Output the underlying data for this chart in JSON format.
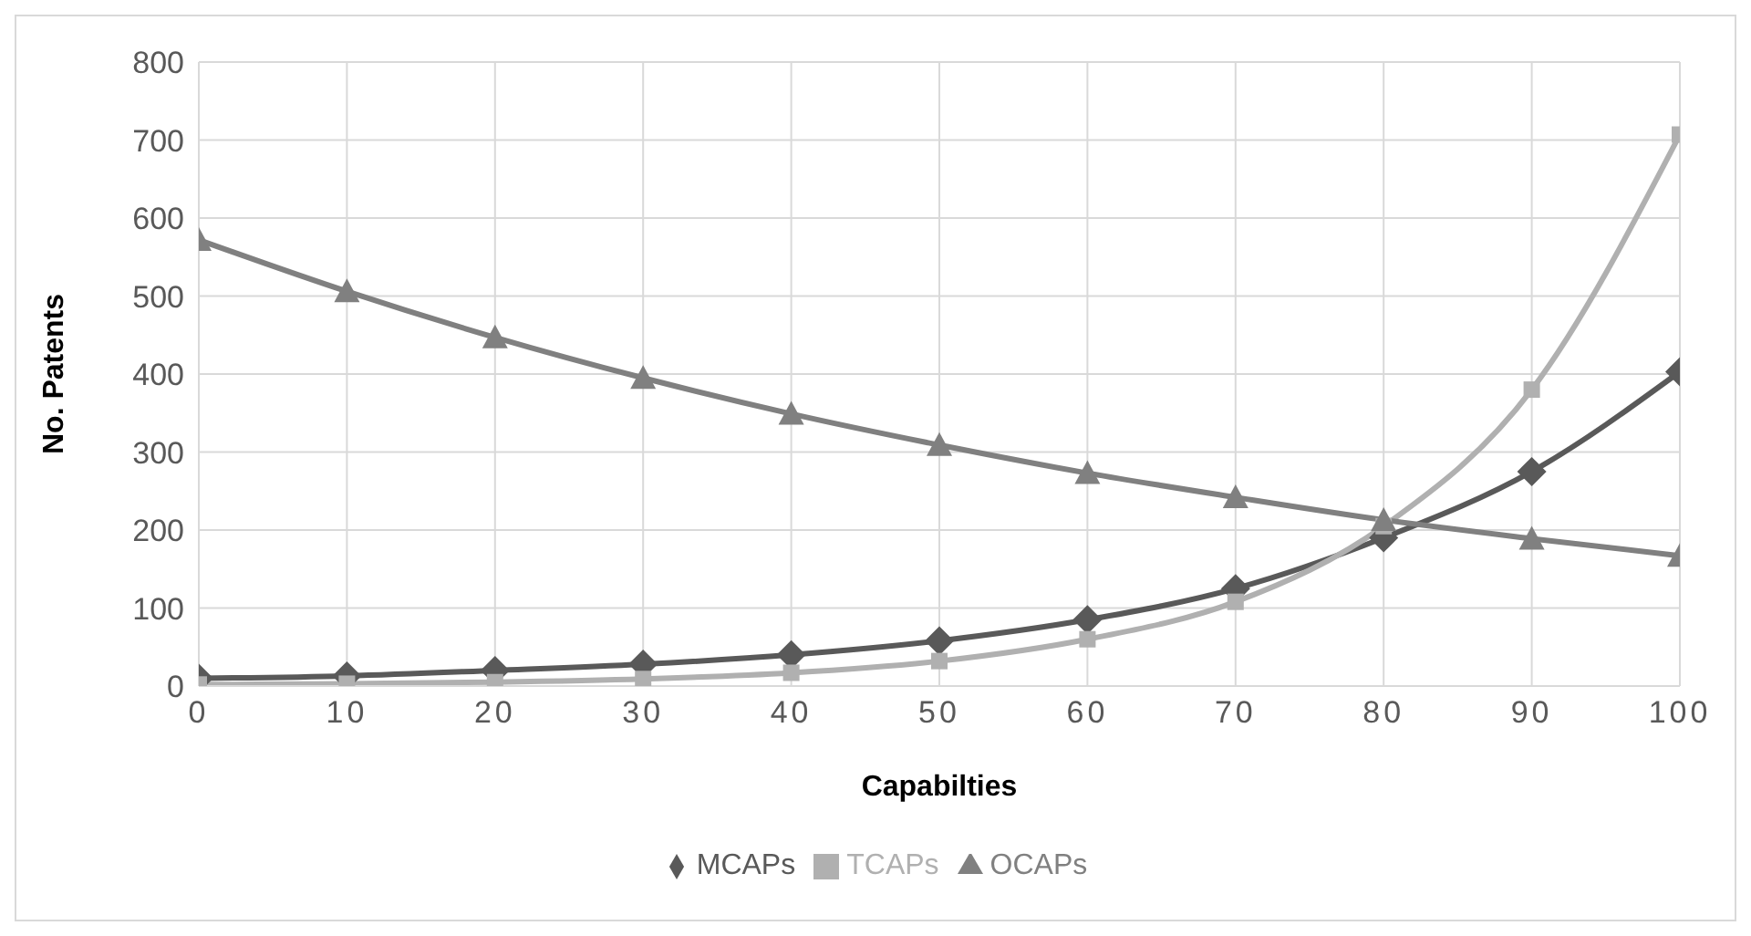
{
  "chart_data": {
    "type": "line",
    "xlabel": "Capabilties",
    "ylabel": "No. Patents",
    "x": [
      0,
      10,
      20,
      30,
      40,
      50,
      60,
      70,
      80,
      90,
      100
    ],
    "series": [
      {
        "name": "MCAPs",
        "color": "#595959",
        "marker": "diamond",
        "values": [
          10,
          13,
          20,
          28,
          40,
          58,
          85,
          125,
          190,
          275,
          403
        ]
      },
      {
        "name": "TCAPs",
        "color": "#b0b0b0",
        "marker": "square",
        "values": [
          2,
          3,
          5,
          9,
          17,
          32,
          60,
          108,
          205,
          380,
          707
        ]
      },
      {
        "name": "OCAPs",
        "color": "#808080",
        "marker": "triangle",
        "values": [
          572,
          506,
          447,
          395,
          349,
          309,
          273,
          242,
          213,
          189,
          167
        ]
      }
    ],
    "xlim": [
      0,
      100
    ],
    "xticks": [
      0,
      10,
      20,
      30,
      40,
      50,
      60,
      70,
      80,
      90,
      100
    ],
    "ylim": [
      0,
      800
    ],
    "yticks": [
      0,
      100,
      200,
      300,
      400,
      500,
      600,
      700,
      800
    ],
    "grid": true,
    "legend": "bottom",
    "line_style": "solid"
  }
}
